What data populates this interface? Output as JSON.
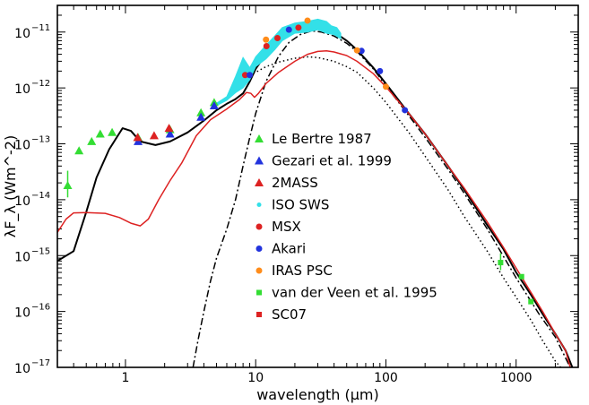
{
  "chart_data": {
    "type": "scatter",
    "title": "",
    "xlabel": "wavelength (μm)",
    "ylabel": "λF_λ (Wm^-2)",
    "x_scale": "log",
    "y_scale": "log",
    "xlim": [
      0.3,
      3000
    ],
    "ylim": [
      1e-17,
      3e-11
    ],
    "x_ticks": [
      {
        "value": 1,
        "label": "1"
      },
      {
        "value": 10,
        "label": "10"
      },
      {
        "value": 100,
        "label": "100"
      },
      {
        "value": 1000,
        "label": "1000"
      }
    ],
    "y_ticks": [
      {
        "value": 1e-17,
        "base": "10",
        "exp": "−17"
      },
      {
        "value": 1e-16,
        "base": "10",
        "exp": "−16"
      },
      {
        "value": 1e-15,
        "base": "10",
        "exp": "−15"
      },
      {
        "value": 1e-14,
        "base": "10",
        "exp": "−14"
      },
      {
        "value": 1e-13,
        "base": "10",
        "exp": "−13"
      },
      {
        "value": 1e-12,
        "base": "10",
        "exp": "−12"
      },
      {
        "value": 1e-11,
        "base": "10",
        "exp": "−11"
      }
    ],
    "legend_position": "center",
    "series": [
      {
        "name": "Le Bertre 1987",
        "marker": "triangle",
        "color": "#33dd33",
        "points": [
          [
            0.36,
            1.8e-14
          ],
          [
            0.44,
            7.5e-14
          ],
          [
            0.55,
            1.1e-13
          ],
          [
            0.64,
            1.5e-13
          ],
          [
            0.79,
            1.6e-13
          ],
          [
            1.25,
            1.3e-13
          ],
          [
            2.2,
            1.8e-13
          ],
          [
            3.8,
            3.6e-13
          ],
          [
            4.8,
            5.5e-13
          ]
        ]
      },
      {
        "name": "Gezari et al. 1999",
        "marker": "triangle",
        "color": "#2233dd",
        "points": [
          [
            1.25,
            1.1e-13
          ],
          [
            2.2,
            1.5e-13
          ],
          [
            3.8,
            3e-13
          ],
          [
            4.8,
            4.8e-13
          ]
        ]
      },
      {
        "name": "2MASS",
        "marker": "triangle",
        "color": "#dd2222",
        "points": [
          [
            1.24,
            1.3e-13
          ],
          [
            1.66,
            1.4e-13
          ],
          [
            2.16,
            1.9e-13
          ]
        ]
      },
      {
        "name": "ISO SWS",
        "marker": "dot",
        "color": "#33e0e8",
        "points": []
      },
      {
        "name": "MSX",
        "marker": "circle",
        "color": "#dd2222",
        "points": [
          [
            8.3,
            1.7e-12
          ],
          [
            12.1,
            5.6e-12
          ],
          [
            14.7,
            7.8e-12
          ],
          [
            21.3,
            1.2e-11
          ]
        ]
      },
      {
        "name": "Akari",
        "marker": "circle",
        "color": "#2233dd",
        "points": [
          [
            9,
            1.7e-12
          ],
          [
            18,
            1.1e-11
          ],
          [
            65,
            4.6e-12
          ],
          [
            90,
            2e-12
          ],
          [
            140,
            4e-13
          ]
        ]
      },
      {
        "name": "IRAS PSC",
        "marker": "circle",
        "color": "#ff8c1a",
        "points": [
          [
            12,
            7.3e-12
          ],
          [
            25,
            1.6e-11
          ],
          [
            60,
            4.7e-12
          ],
          [
            100,
            1.05e-12
          ]
        ]
      },
      {
        "name": "van der Veen et al. 1995",
        "marker": "square",
        "color": "#33dd33",
        "points": [
          [
            760,
            7.5e-16
          ],
          [
            1100,
            4.2e-16
          ],
          [
            1300,
            1.5e-16
          ]
        ]
      },
      {
        "name": "SC07",
        "marker": "square",
        "color": "#dd2222",
        "points": []
      }
    ],
    "model_curves": [
      {
        "style": "solid",
        "color": "#000000",
        "points": [
          [
            0.3,
            8e-16
          ],
          [
            0.4,
            1.2e-15
          ],
          [
            0.5,
            6e-15
          ],
          [
            0.6,
            2.5e-14
          ],
          [
            0.75,
            8e-14
          ],
          [
            0.95,
            1.9e-13
          ],
          [
            1.1,
            1.7e-13
          ],
          [
            1.3,
            1.1e-13
          ],
          [
            1.7,
            9.5e-14
          ],
          [
            2.2,
            1.1e-13
          ],
          [
            3,
            1.6e-13
          ],
          [
            4,
            2.6e-13
          ],
          [
            5,
            4e-13
          ],
          [
            6,
            5.2e-13
          ],
          [
            7,
            6.3e-13
          ],
          [
            8,
            8e-13
          ],
          [
            9,
            1.3e-12
          ],
          [
            10,
            2.2e-12
          ],
          [
            12,
            4e-12
          ],
          [
            15,
            6.5e-12
          ],
          [
            18,
            9e-12
          ],
          [
            22,
            1.15e-11
          ],
          [
            27,
            1.3e-11
          ],
          [
            32,
            1.25e-11
          ],
          [
            40,
            1e-11
          ],
          [
            50,
            7e-12
          ],
          [
            60,
            4.8e-12
          ],
          [
            80,
            2.3e-12
          ],
          [
            100,
            1.2e-12
          ],
          [
            150,
            3.5e-13
          ],
          [
            200,
            1.5e-13
          ],
          [
            300,
            4e-14
          ],
          [
            400,
            1.5e-14
          ],
          [
            600,
            3.5e-15
          ],
          [
            800,
            1.3e-15
          ],
          [
            1000,
            5e-16
          ],
          [
            1300,
            2e-16
          ],
          [
            1600,
            9e-17
          ],
          [
            2000,
            4e-17
          ],
          [
            2400,
            2e-17
          ],
          [
            2700,
            1e-17
          ]
        ]
      },
      {
        "style": "dashdot",
        "color": "#000000",
        "points": [
          [
            3.3,
            1e-17
          ],
          [
            3.6,
            3e-17
          ],
          [
            4,
            1e-16
          ],
          [
            4.5,
            3.5e-16
          ],
          [
            5,
            9e-16
          ],
          [
            6,
            3e-15
          ],
          [
            7,
            1e-14
          ],
          [
            8,
            4e-14
          ],
          [
            9,
            1.3e-13
          ],
          [
            10,
            3.5e-13
          ],
          [
            12,
            1.3e-12
          ],
          [
            15,
            3.7e-12
          ],
          [
            18,
            6.5e-12
          ],
          [
            22,
            9e-12
          ],
          [
            27,
            1.05e-11
          ],
          [
            32,
            1e-11
          ],
          [
            40,
            8.5e-12
          ],
          [
            50,
            6.3e-12
          ],
          [
            60,
            4.5e-12
          ],
          [
            80,
            2.2e-12
          ],
          [
            100,
            1.1e-12
          ],
          [
            150,
            3.2e-13
          ],
          [
            200,
            1.3e-13
          ],
          [
            300,
            3.5e-14
          ],
          [
            400,
            1.3e-14
          ],
          [
            600,
            3e-15
          ],
          [
            1000,
            4e-16
          ],
          [
            1500,
            9e-17
          ],
          [
            2000,
            3.5e-17
          ],
          [
            2600,
            1e-17
          ]
        ]
      },
      {
        "style": "dotted",
        "color": "#000000",
        "points": [
          [
            9,
            1.7e-12
          ],
          [
            10,
            1.9e-12
          ],
          [
            12,
            2.4e-12
          ],
          [
            15,
            2.9e-12
          ],
          [
            20,
            3.4e-12
          ],
          [
            25,
            3.6e-12
          ],
          [
            30,
            3.5e-12
          ],
          [
            40,
            3e-12
          ],
          [
            50,
            2.4e-12
          ],
          [
            60,
            1.9e-12
          ],
          [
            80,
            1e-12
          ],
          [
            100,
            5.5e-13
          ],
          [
            150,
            1.6e-13
          ],
          [
            200,
            6e-14
          ],
          [
            300,
            1.5e-14
          ],
          [
            400,
            5e-15
          ],
          [
            600,
            1.2e-15
          ],
          [
            800,
            4e-16
          ],
          [
            1000,
            1.8e-16
          ],
          [
            1300,
            7e-17
          ],
          [
            1600,
            3e-17
          ],
          [
            2000,
            1.3e-17
          ],
          [
            2200,
            1e-17
          ]
        ]
      },
      {
        "style": "solid",
        "color": "#dd2222",
        "points": [
          [
            0.3,
            2.6e-15
          ],
          [
            0.35,
            4.5e-15
          ],
          [
            0.4,
            5.8e-15
          ],
          [
            0.5,
            5.9e-15
          ],
          [
            0.7,
            5.7e-15
          ],
          [
            0.9,
            4.8e-15
          ],
          [
            1.1,
            3.8e-15
          ],
          [
            1.3,
            3.4e-15
          ],
          [
            1.5,
            4.5e-15
          ],
          [
            1.8,
            1e-14
          ],
          [
            2.2,
            2.2e-14
          ],
          [
            2.7,
            4.5e-14
          ],
          [
            3.5,
            1.4e-13
          ],
          [
            4.5,
            2.7e-13
          ],
          [
            6,
            4.2e-13
          ],
          [
            7.5,
            6.2e-13
          ],
          [
            8.5,
            8.3e-13
          ],
          [
            9.2,
            8e-13
          ],
          [
            9.8,
            6.8e-13
          ],
          [
            10.5,
            8e-13
          ],
          [
            12,
            1.2e-12
          ],
          [
            15,
            1.9e-12
          ],
          [
            20,
            3e-12
          ],
          [
            25,
            4e-12
          ],
          [
            30,
            4.5e-12
          ],
          [
            35,
            4.6e-12
          ],
          [
            40,
            4.4e-12
          ],
          [
            50,
            3.8e-12
          ],
          [
            60,
            3e-12
          ],
          [
            80,
            1.8e-12
          ],
          [
            100,
            1.05e-12
          ],
          [
            150,
            3.5e-13
          ],
          [
            200,
            1.5e-13
          ],
          [
            300,
            4e-14
          ],
          [
            400,
            1.6e-14
          ],
          [
            600,
            4e-15
          ],
          [
            800,
            1.4e-15
          ],
          [
            1000,
            6e-16
          ],
          [
            1300,
            2.2e-16
          ],
          [
            1600,
            1e-16
          ],
          [
            2000,
            4e-17
          ],
          [
            2400,
            2e-17
          ],
          [
            2600,
            1e-17
          ]
        ]
      }
    ]
  }
}
